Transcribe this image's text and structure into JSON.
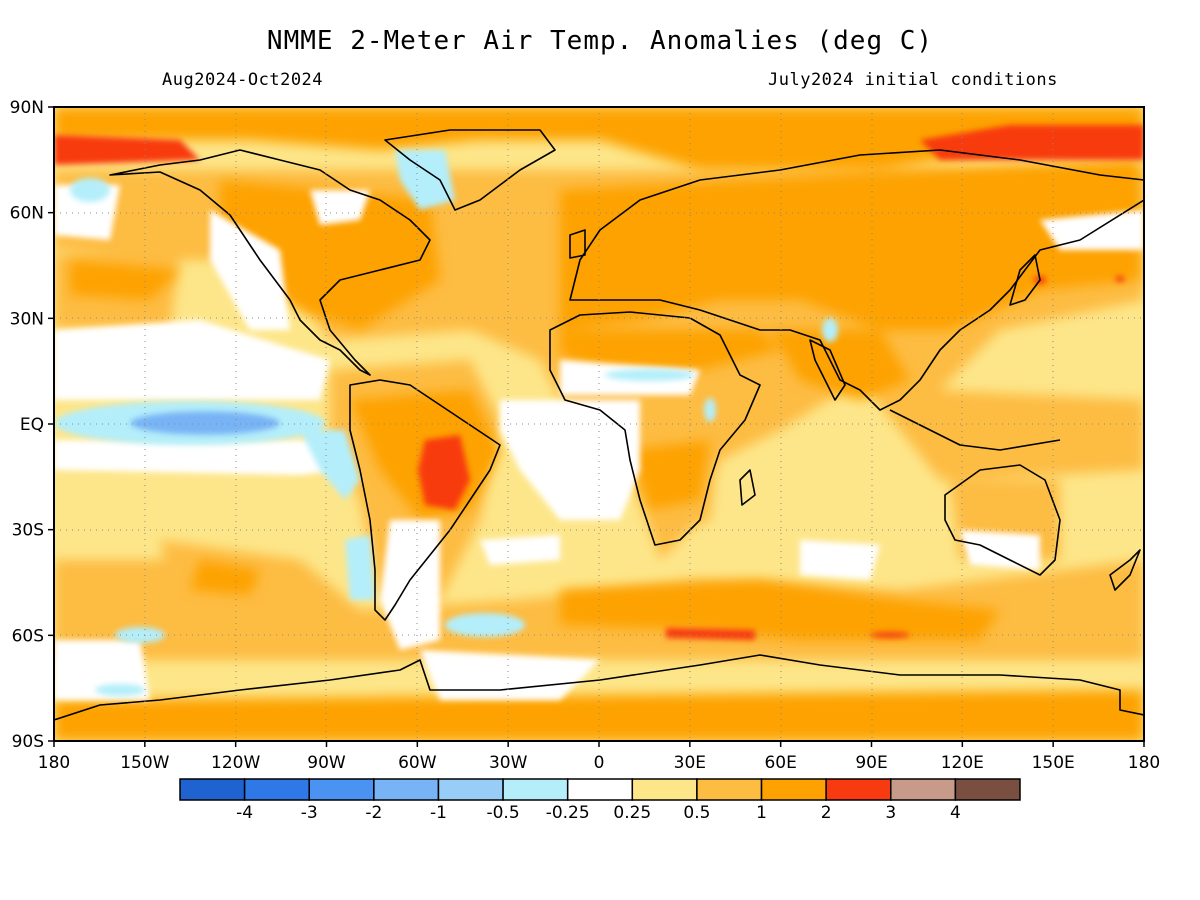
{
  "header": {
    "title": "NMME 2-Meter Air Temp. Anomalies (deg C)",
    "period": "Aug2024-Oct2024",
    "init": "July2024 initial conditions"
  },
  "axes": {
    "lat_labels": [
      {
        "text": "90N",
        "lat": 90
      },
      {
        "text": "60N",
        "lat": 60
      },
      {
        "text": "30N",
        "lat": 30
      },
      {
        "text": "EQ",
        "lat": 0
      },
      {
        "text": "30S",
        "lat": -30
      },
      {
        "text": "60S",
        "lat": -60
      },
      {
        "text": "90S",
        "lat": -90
      }
    ],
    "lon_labels": [
      {
        "text": "180",
        "lon": -180
      },
      {
        "text": "150W",
        "lon": -150
      },
      {
        "text": "120W",
        "lon": -120
      },
      {
        "text": "90W",
        "lon": -90
      },
      {
        "text": "60W",
        "lon": -60
      },
      {
        "text": "30W",
        "lon": -30
      },
      {
        "text": "0",
        "lon": 0
      },
      {
        "text": "30E",
        "lon": 30
      },
      {
        "text": "60E",
        "lon": 60
      },
      {
        "text": "90E",
        "lon": 90
      },
      {
        "text": "120E",
        "lon": 120
      },
      {
        "text": "150E",
        "lon": 150
      },
      {
        "text": "180",
        "lon": 180
      }
    ]
  },
  "legend": {
    "colors": [
      "#1f63d0",
      "#2f78e8",
      "#4a93f2",
      "#78b4f5",
      "#98cdf7",
      "#b4eefa",
      "#ffffff",
      "#fde68a",
      "#fdbc42",
      "#fda200",
      "#f83a10",
      "#c89a8a",
      "#7a4e40"
    ],
    "labels": [
      "-4",
      "-3",
      "-2",
      "-1",
      "-0.5",
      "-0.25",
      "0.25",
      "0.5",
      "1",
      "2",
      "3",
      "4"
    ]
  },
  "chart_data": {
    "type": "heatmap",
    "title": "NMME 2-Meter Air Temp. Anomalies (deg C)",
    "subtitle_left": "Aug2024-Oct2024",
    "subtitle_right": "July2024 initial conditions",
    "x_range": [
      -180,
      180
    ],
    "y_range": [
      -90,
      90
    ],
    "grid": true,
    "levels": [
      -4,
      -3,
      -2,
      -1,
      -0.5,
      -0.25,
      0.25,
      0.5,
      1,
      2,
      3,
      4
    ],
    "regions": [
      {
        "lon": [
          -150,
          -105
        ],
        "lat": [
          -3,
          3
        ],
        "value": -1
      },
      {
        "lon": [
          -175,
          -100
        ],
        "lat": [
          -6,
          6
        ],
        "value": -0.4
      },
      {
        "lon": [
          -55,
          -42
        ],
        "lat": [
          -25,
          -10
        ],
        "value": 2.5
      },
      {
        "lon": [
          -180,
          -130
        ],
        "lat": [
          72,
          80
        ],
        "value": 2.5
      },
      {
        "lon": [
          95,
          180
        ],
        "lat": [
          72,
          84
        ],
        "value": 2.5
      },
      {
        "lon": [
          20,
          55
        ],
        "lat": [
          -63,
          -59
        ],
        "value": 2.3
      },
      {
        "lon": [
          -50,
          -20
        ],
        "lat": [
          63,
          75
        ],
        "value": -0.4
      },
      {
        "lon": [
          -20,
          40
        ],
        "lat": [
          -40,
          0
        ],
        "value": 0.1
      },
      {
        "lon": [
          -120,
          -90
        ],
        "lat": [
          0,
          20
        ],
        "value": 0.1
      },
      {
        "lon": [
          60,
          140
        ],
        "lat": [
          30,
          75
        ],
        "value": 1.5
      },
      {
        "lon": [
          -180,
          180
        ],
        "lat": [
          -90,
          -70
        ],
        "value": 1.5
      }
    ]
  }
}
